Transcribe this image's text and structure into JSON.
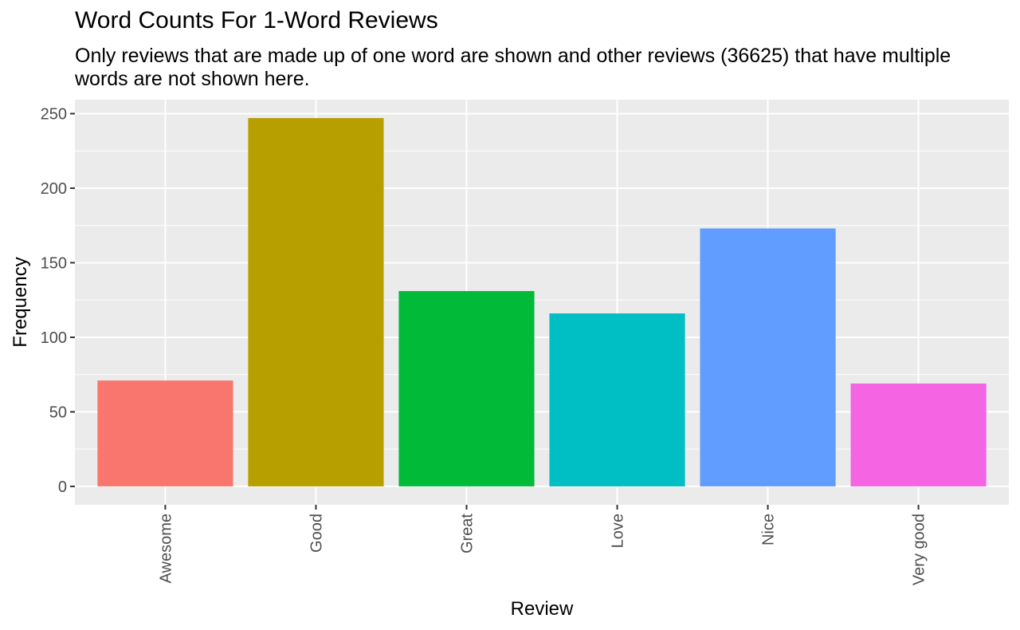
{
  "chart_data": {
    "type": "bar",
    "title": "Word Counts For 1-Word Reviews",
    "subtitle": "Only reviews that are made up of one word are shown and other reviews (36625) that have multiple words are not shown here.",
    "xlabel": "Review",
    "ylabel": "Frequency",
    "categories": [
      "Awesome",
      "Good",
      "Great",
      "Love",
      "Nice",
      "Very good"
    ],
    "values": [
      71,
      247,
      131,
      116,
      173,
      69
    ],
    "colors": [
      "#F8766D",
      "#B79F00",
      "#00BA38",
      "#00BFC4",
      "#619CFF",
      "#F564E3"
    ],
    "yticks": [
      0,
      50,
      100,
      150,
      200,
      250
    ],
    "ylim": [
      -12.35,
      259.35
    ],
    "grid": true,
    "legend": "none"
  }
}
